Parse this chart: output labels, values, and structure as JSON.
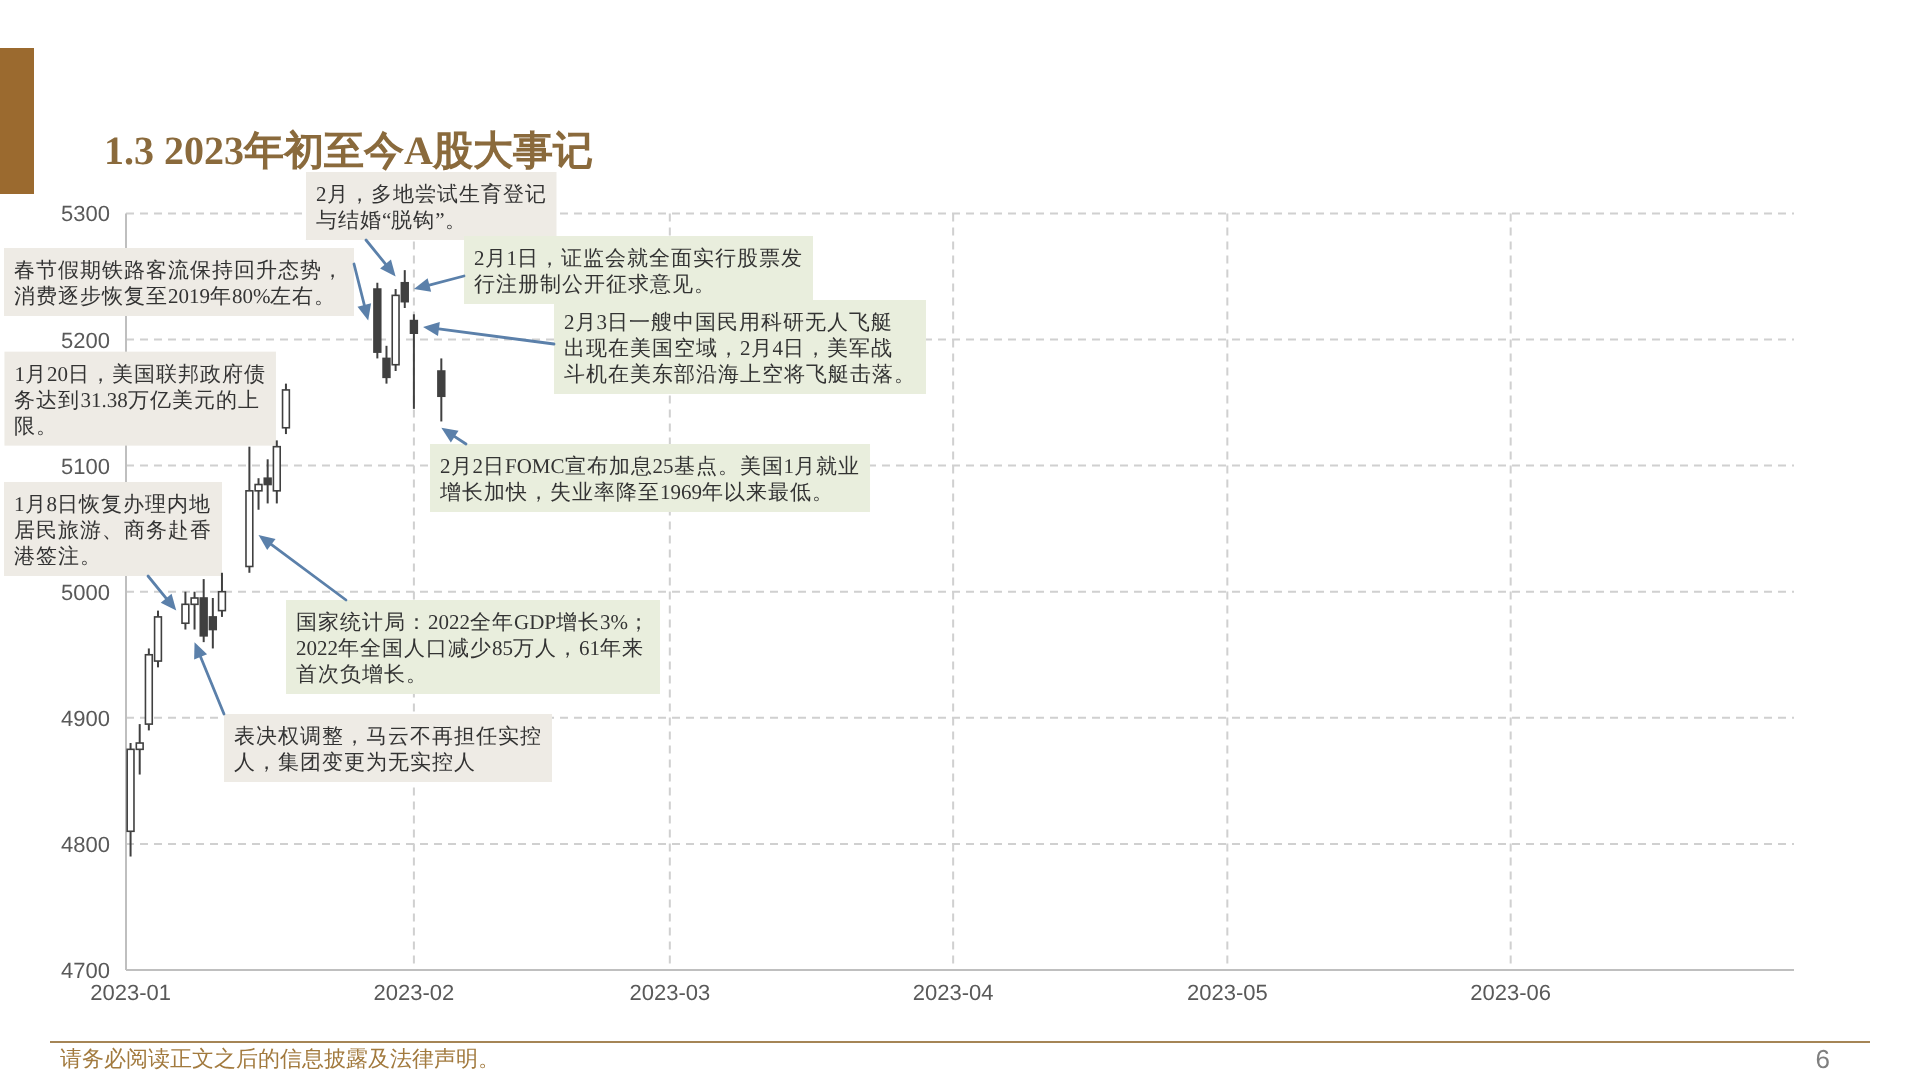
{
  "chart_data": {
    "type": "candlestick",
    "title": "1.3 2023年初至今A股大事记",
    "x": [
      "2023-01-03",
      "2023-01-04",
      "2023-01-05",
      "2023-01-06",
      "2023-01-09",
      "2023-01-10",
      "2023-01-11",
      "2023-01-12",
      "2023-01-13",
      "2023-01-16",
      "2023-01-17",
      "2023-01-18",
      "2023-01-19",
      "2023-01-20",
      "2023-01-30",
      "2023-01-31",
      "2023-02-01",
      "2023-02-02",
      "2023-02-03",
      "2023-02-06"
    ],
    "ohlc": [
      [
        4810,
        4880,
        4790,
        4875
      ],
      [
        4875,
        4895,
        4855,
        4880
      ],
      [
        4895,
        4955,
        4890,
        4950
      ],
      [
        4945,
        4985,
        4940,
        4980
      ],
      [
        4975,
        5000,
        4970,
        4990
      ],
      [
        4990,
        5000,
        4970,
        4995
      ],
      [
        4995,
        5010,
        4960,
        4965
      ],
      [
        4980,
        4995,
        4955,
        4970
      ],
      [
        4985,
        5015,
        4980,
        5000
      ],
      [
        5020,
        5115,
        5015,
        5080
      ],
      [
        5080,
        5090,
        5065,
        5085
      ],
      [
        5090,
        5105,
        5070,
        5085
      ],
      [
        5080,
        5120,
        5070,
        5115
      ],
      [
        5130,
        5165,
        5125,
        5160
      ],
      [
        5240,
        5245,
        5185,
        5190
      ],
      [
        5185,
        5195,
        5165,
        5170
      ],
      [
        5180,
        5240,
        5175,
        5235
      ],
      [
        5245,
        5255,
        5225,
        5230
      ],
      [
        5215,
        5220,
        5145,
        5205
      ],
      [
        5175,
        5185,
        5135,
        5155
      ]
    ],
    "color": "#404040",
    "xlim": [
      "2023-01-02T12:00",
      "2023-07-04"
    ],
    "xticks": [
      {
        "value": "2023-01-03",
        "label": "2023-01"
      },
      {
        "value": "2023-02-03",
        "label": "2023-02"
      },
      {
        "value": "2023-03-03",
        "label": "2023-03"
      },
      {
        "value": "2023-04-03",
        "label": "2023-04"
      },
      {
        "value": "2023-05-03",
        "label": "2023-05"
      },
      {
        "value": "2023-06-03",
        "label": "2023-06"
      }
    ],
    "ylim": [
      4700,
      5300
    ],
    "yticks": [
      4700,
      4800,
      4900,
      5000,
      5100,
      5200,
      5300
    ],
    "grid": true,
    "annotations": [
      {
        "text": "2月，多地尝试生育登记与结婚“脱钩”。",
        "x": "2023-02-01",
        "y": 5250
      },
      {
        "text": "2月1日，证监会就全面实行股票发行注册制公开征求意见。",
        "x": "2023-02-03",
        "y": 5240
      },
      {
        "text": "春节假期铁路客流保持回升态势，消费逐步恢复至2019年80%左右。",
        "x": "2023-01-29",
        "y": 5215
      },
      {
        "text": "2月3日一艘中国民用科研无人飞艇出现在美国空域，2月4日，美军战斗机在美东部沿海上空将飞艇击落。",
        "x": "2023-02-04",
        "y": 5210
      },
      {
        "text": "1月20日，美国联邦政府债务达到31.38万亿美元的上限。",
        "x": "2023-01-20",
        "y": 5165
      },
      {
        "text": "2月2日FOMC宣布加息25基点。美国1月就业增长加快，失业率降至1969年以来最低。",
        "x": "2023-02-06",
        "y": 5130
      },
      {
        "text": "1月8日恢复办理内地居民旅游、商务赴香港签注。",
        "x": "2023-01-08",
        "y": 4985
      },
      {
        "text": "国家统计局：2022全年GDP增长3%；2022年全国人口减少85万人，61年来首次负增长。",
        "x": "2023-01-17",
        "y": 5045
      },
      {
        "text": "表决权调整，马云不再担任实控人，集团变更为无实控人",
        "x": "2023-01-10",
        "y": 4960
      },
      "请务必阅读正文之后的信息披露及法律声明。",
      "6"
    ]
  }
}
